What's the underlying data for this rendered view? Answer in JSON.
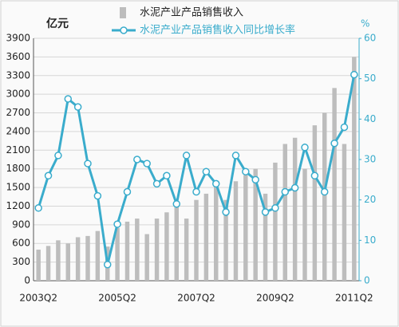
{
  "chart_data": {
    "type": "combo",
    "y_label": "亿元",
    "y2_label": "%",
    "categories": [
      "2003Q2",
      null,
      null,
      null,
      null,
      null,
      null,
      null,
      "2005Q2",
      null,
      null,
      null,
      null,
      null,
      null,
      null,
      "2007Q2",
      null,
      null,
      null,
      null,
      null,
      null,
      null,
      "2009Q2",
      null,
      null,
      null,
      null,
      null,
      null,
      null,
      "2011Q2"
    ],
    "series": [
      {
        "name": "水泥产业产品销售收入",
        "type": "bar",
        "color": "#bdbdbd",
        "values": [
          500,
          560,
          650,
          600,
          700,
          720,
          800,
          550,
          850,
          950,
          1000,
          750,
          1000,
          1100,
          1200,
          1000,
          1300,
          1400,
          1600,
          1300,
          1600,
          1700,
          1800,
          1400,
          1900,
          2200,
          2300,
          1800,
          2500,
          2700,
          3100,
          2200,
          3600
        ]
      },
      {
        "name": "水泥产业产品销售收入同比增长率",
        "type": "line",
        "axis": "y2",
        "color": "#3aaccc",
        "values": [
          18,
          26,
          31,
          45,
          43,
          29,
          21,
          4,
          14,
          22,
          30,
          29,
          24,
          26,
          19,
          31,
          22,
          27,
          24,
          17,
          31,
          27,
          25,
          17,
          18,
          22,
          23,
          33,
          26,
          22,
          34,
          38,
          51
        ]
      }
    ],
    "ylim": [
      0,
      3900
    ],
    "yticks": [
      0,
      300,
      600,
      900,
      1200,
      1500,
      1800,
      2100,
      2400,
      2700,
      3000,
      3300,
      3600,
      3900
    ],
    "y2lim": [
      0,
      60
    ],
    "y2ticks": [
      0,
      10,
      20,
      30,
      40,
      50,
      60
    ],
    "grid": true
  }
}
